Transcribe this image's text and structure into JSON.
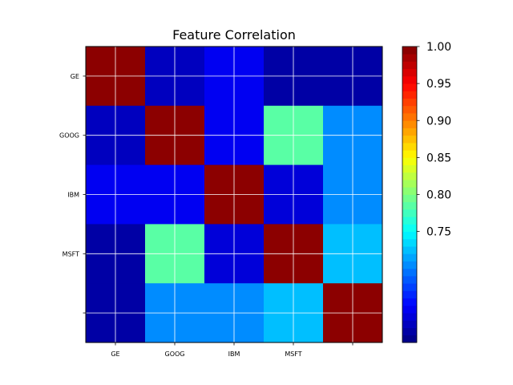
{
  "chart_data": {
    "type": "heatmap",
    "title": "Feature Correlation",
    "row_tick_labels": [
      "GE",
      "GOOG",
      "IBM",
      "MSFT",
      ""
    ],
    "col_tick_labels": [
      "GE",
      "GOOG",
      "IBM",
      "MSFT",
      ""
    ],
    "matrix": [
      [
        1.0,
        0.62,
        0.64,
        0.61,
        0.61
      ],
      [
        0.62,
        1.0,
        0.64,
        0.78,
        0.71
      ],
      [
        0.64,
        0.64,
        1.0,
        0.63,
        0.71
      ],
      [
        0.61,
        0.78,
        0.63,
        1.0,
        0.72
      ],
      [
        0.61,
        0.71,
        0.71,
        0.72,
        1.0
      ]
    ],
    "colormap": "jet",
    "colorbar": {
      "vmin": 0.6,
      "vmax": 1.0,
      "ticks": [
        0.75,
        0.8,
        0.85,
        0.9,
        0.95,
        1.0
      ],
      "tick_labels": [
        "0.75",
        "0.80",
        "0.85",
        "0.90",
        "0.95",
        "1.00"
      ],
      "levels": 40
    },
    "grid": true,
    "grid_color": "#ffffff",
    "colors": {
      "jet_stops": [
        "#00007f",
        "#0000ff",
        "#007fff",
        "#00ffff",
        "#7fff7f",
        "#ffff00",
        "#ff7f00",
        "#ff0000",
        "#7f0000"
      ]
    }
  }
}
